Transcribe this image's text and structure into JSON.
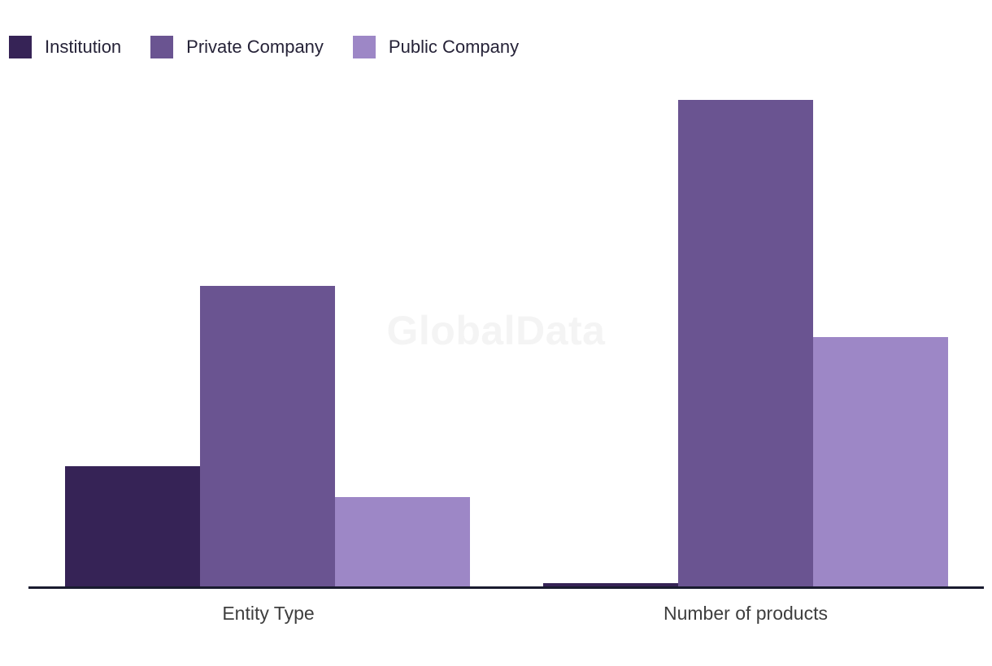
{
  "watermark": "GlobalData",
  "legend": {
    "items": [
      {
        "label": "Institution",
        "color": "#362356"
      },
      {
        "label": "Private Company",
        "color": "#6a5491"
      },
      {
        "label": "Public Company",
        "color": "#9d87c6"
      }
    ]
  },
  "chart_data": {
    "type": "bar",
    "title": "",
    "categories": [
      "Entity Type",
      "Number of products"
    ],
    "series": [
      {
        "name": "Institution",
        "color": "#362356",
        "values": [
          148,
          4
        ]
      },
      {
        "name": "Private Company",
        "color": "#6a5491",
        "values": [
          370,
          599
        ]
      },
      {
        "name": "Public Company",
        "color": "#9d87c6",
        "values": [
          110,
          307
        ]
      }
    ],
    "xlabel": "",
    "ylabel": "",
    "y_axis_visible": false,
    "tick_labels_visible": false,
    "grid": false,
    "legend_position": "top-left",
    "ylim": [
      0,
      625
    ],
    "value_note": "No y-axis, gridlines, or data labels shown in the chart; values are estimated relative bar heights (pixels above the baseline)."
  },
  "colors": {
    "background": "#ffffff",
    "axis_line": "#191b2f",
    "axis_label_text": "#3e3e3e",
    "legend_text": "#262338",
    "watermark_text": "#f4f4f4"
  }
}
